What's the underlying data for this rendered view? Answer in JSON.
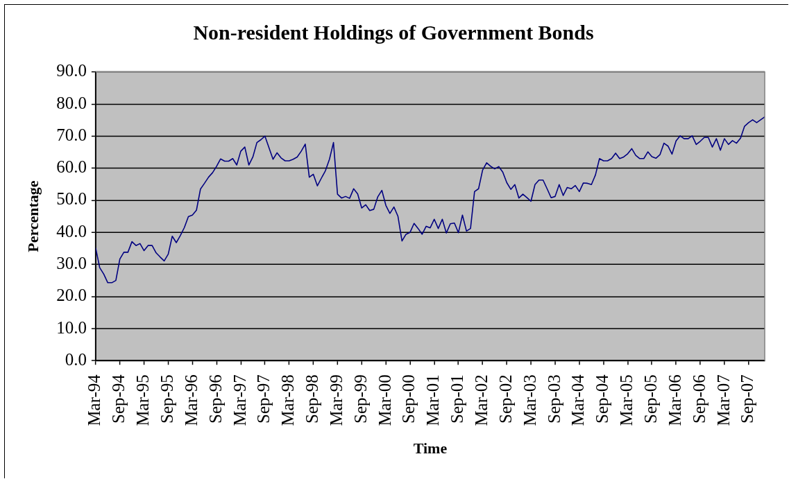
{
  "chart_data": {
    "type": "line",
    "title": "Non-resident Holdings of Government Bonds",
    "xlabel": "Time",
    "ylabel": "Percentage",
    "x": [
      "1994-03",
      "1994-04",
      "1994-05",
      "1994-06",
      "1994-07",
      "1994-08",
      "1994-09",
      "1994-10",
      "1994-11",
      "1994-12",
      "1995-01",
      "1995-02",
      "1995-03",
      "1995-04",
      "1995-05",
      "1995-06",
      "1995-07",
      "1995-08",
      "1995-09",
      "1995-10",
      "1995-11",
      "1995-12",
      "1996-01",
      "1996-02",
      "1996-03",
      "1996-04",
      "1996-05",
      "1996-06",
      "1996-07",
      "1996-08",
      "1996-09",
      "1996-10",
      "1996-11",
      "1996-12",
      "1997-01",
      "1997-02",
      "1997-03",
      "1997-04",
      "1997-05",
      "1997-06",
      "1997-07",
      "1997-08",
      "1997-09",
      "1997-11",
      "1997-12",
      "1998-01",
      "1998-02",
      "1998-03",
      "1998-04",
      "1998-05",
      "1998-06",
      "1998-07",
      "1998-08",
      "1998-09",
      "1998-10",
      "1998-11",
      "1998-12",
      "1999-01",
      "1999-02",
      "1999-03",
      "1999-04",
      "1999-05",
      "1999-06",
      "1999-07",
      "1999-08",
      "1999-09",
      "1999-10",
      "1999-11",
      "1999-12",
      "2000-01",
      "2000-02",
      "2000-03",
      "2000-04",
      "2000-05",
      "2000-06",
      "2000-07",
      "2000-08",
      "2000-09",
      "2000-10",
      "2000-11",
      "2000-12",
      "2001-01",
      "2001-02",
      "2001-03",
      "2001-04",
      "2001-05",
      "2001-06",
      "2001-07",
      "2001-08",
      "2001-09",
      "2001-10",
      "2001-11",
      "2001-12",
      "2002-01",
      "2002-02",
      "2002-03",
      "2002-04",
      "2002-05",
      "2002-06",
      "2002-07",
      "2002-08",
      "2002-09",
      "2002-10",
      "2002-11",
      "2002-12",
      "2003-01",
      "2003-02",
      "2003-03",
      "2003-04",
      "2003-05",
      "2003-06",
      "2003-07",
      "2003-08",
      "2003-09",
      "2003-10",
      "2003-11",
      "2003-12",
      "2004-01",
      "2004-02",
      "2004-03",
      "2004-04",
      "2004-05",
      "2004-06",
      "2004-07",
      "2004-08",
      "2004-09",
      "2004-10",
      "2004-11",
      "2004-12",
      "2005-01",
      "2005-02",
      "2005-03",
      "2005-04",
      "2005-05",
      "2005-06",
      "2005-07",
      "2005-08",
      "2005-09",
      "2005-10",
      "2005-11",
      "2005-12",
      "2006-01",
      "2006-02",
      "2006-03",
      "2006-04",
      "2006-05",
      "2006-06",
      "2006-07",
      "2006-08",
      "2006-09",
      "2006-10",
      "2006-11",
      "2006-12",
      "2007-01",
      "2007-02",
      "2007-03",
      "2007-04",
      "2007-05",
      "2007-06",
      "2007-07",
      "2007-08",
      "2007-09",
      "2007-10",
      "2007-11",
      "2008-01"
    ],
    "series": [
      {
        "color": "#000080",
        "values": [
          35.1,
          29.0,
          27.0,
          24.3,
          24.3,
          25.0,
          31.7,
          33.8,
          33.8,
          37.1,
          35.9,
          36.5,
          34.3,
          35.9,
          35.9,
          33.6,
          32.3,
          31.1,
          33.2,
          38.8,
          36.8,
          39.0,
          41.5,
          44.9,
          45.4,
          46.9,
          53.5,
          55.3,
          57.2,
          58.6,
          60.6,
          62.9,
          62.2,
          62.2,
          63.0,
          61.0,
          65.3,
          66.6,
          61.0,
          63.5,
          68.0,
          68.9,
          70.0,
          62.8,
          64.8,
          63.2,
          62.3,
          62.3,
          62.8,
          63.5,
          65.3,
          67.5,
          57.2,
          58.1,
          54.5,
          56.9,
          59.2,
          62.8,
          68.0,
          51.9,
          50.7,
          51.2,
          50.6,
          53.6,
          52.0,
          47.6,
          48.6,
          46.8,
          47.2,
          51.1,
          53.1,
          48.4,
          45.9,
          47.9,
          45.0,
          37.3,
          39.4,
          40.0,
          42.8,
          41.2,
          39.4,
          41.9,
          41.4,
          44.1,
          41.2,
          44.1,
          39.8,
          42.7,
          42.9,
          39.9,
          45.4,
          40.4,
          41.2,
          52.7,
          53.6,
          59.4,
          61.7,
          60.6,
          59.8,
          60.5,
          58.8,
          55.5,
          53.4,
          54.9,
          50.7,
          51.9,
          50.8,
          49.7,
          54.9,
          56.3,
          56.3,
          53.6,
          50.8,
          51.2,
          54.9,
          51.5,
          54.0,
          53.6,
          54.6,
          52.7,
          55.4,
          55.3,
          54.9,
          57.9,
          63.0,
          62.3,
          62.3,
          63.0,
          64.7,
          63.0,
          63.5,
          64.5,
          66.1,
          64.0,
          63.0,
          63.0,
          65.1,
          63.6,
          63.1,
          64.2,
          67.8,
          66.9,
          64.4,
          68.5,
          70.1,
          69.2,
          69.2,
          70.1,
          67.4,
          68.4,
          69.6,
          69.6,
          66.6,
          69.2,
          65.6,
          69.2,
          67.4,
          68.6,
          67.8,
          69.4,
          73.1,
          74.2,
          75.1,
          74.2,
          76.0
        ]
      }
    ],
    "xlim": [
      "1994-03",
      "2008-01"
    ],
    "xticks": [
      {
        "value": "1994-03",
        "label": "Mar-94"
      },
      {
        "value": "1994-09",
        "label": "Sep-94"
      },
      {
        "value": "1995-03",
        "label": "Mar-95"
      },
      {
        "value": "1995-09",
        "label": "Sep-95"
      },
      {
        "value": "1996-03",
        "label": "Mar-96"
      },
      {
        "value": "1996-09",
        "label": "Sep-96"
      },
      {
        "value": "1997-03",
        "label": "Mar-97"
      },
      {
        "value": "1997-09",
        "label": "Sep-97"
      },
      {
        "value": "1998-03",
        "label": "Mar-98"
      },
      {
        "value": "1998-09",
        "label": "Sep-98"
      },
      {
        "value": "1999-03",
        "label": "Mar-99"
      },
      {
        "value": "1999-09",
        "label": "Sep-99"
      },
      {
        "value": "2000-03",
        "label": "Mar-00"
      },
      {
        "value": "2000-09",
        "label": "Sep-00"
      },
      {
        "value": "2001-03",
        "label": "Mar-01"
      },
      {
        "value": "2001-09",
        "label": "Sep-01"
      },
      {
        "value": "2002-03",
        "label": "Mar-02"
      },
      {
        "value": "2002-09",
        "label": "Sep-02"
      },
      {
        "value": "2003-03",
        "label": "Mar-03"
      },
      {
        "value": "2003-09",
        "label": "Sep-03"
      },
      {
        "value": "2004-03",
        "label": "Mar-04"
      },
      {
        "value": "2004-09",
        "label": "Sep-04"
      },
      {
        "value": "2005-03",
        "label": "Mar-05"
      },
      {
        "value": "2005-09",
        "label": "Sep-05"
      },
      {
        "value": "2006-03",
        "label": "Mar-06"
      },
      {
        "value": "2006-09",
        "label": "Sep-06"
      },
      {
        "value": "2007-03",
        "label": "Mar-07"
      },
      {
        "value": "2007-09",
        "label": "Sep-07"
      }
    ],
    "ylim": [
      0,
      90
    ],
    "yticks": [
      {
        "value": 0,
        "label": "0.0"
      },
      {
        "value": 10,
        "label": "10.0"
      },
      {
        "value": 20,
        "label": "20.0"
      },
      {
        "value": 30,
        "label": "30.0"
      },
      {
        "value": 40,
        "label": "40.0"
      },
      {
        "value": 50,
        "label": "50.0"
      },
      {
        "value": 60,
        "label": "60.0"
      },
      {
        "value": 70,
        "label": "70.0"
      },
      {
        "value": 80,
        "label": "80.0"
      },
      {
        "value": 90,
        "label": "90.0"
      }
    ],
    "grid": "y",
    "marker": "none",
    "line_style": "solid"
  }
}
